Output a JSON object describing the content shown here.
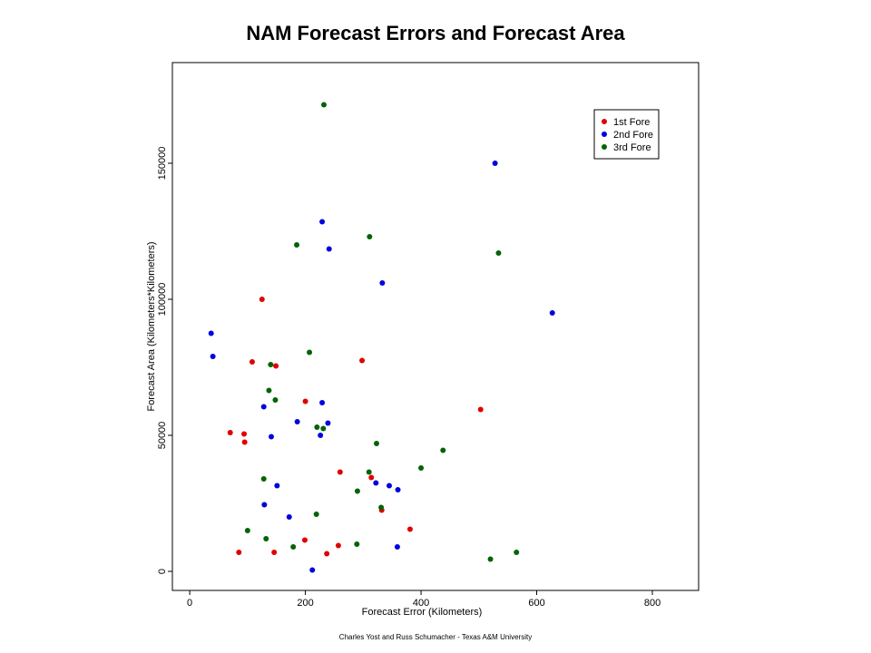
{
  "chart_data": {
    "type": "scatter",
    "title": "NAM Forecast Errors and Forecast Area",
    "xlabel": "Forecast Error (Kilometers)",
    "ylabel": "Forecast Area (Kilometers*Kilometers)",
    "xlim": [
      -30,
      880
    ],
    "ylim": [
      -7000,
      187000
    ],
    "xticks": [
      0,
      200,
      400,
      600,
      800
    ],
    "yticks": [
      0,
      50000,
      100000,
      150000
    ],
    "grid": false,
    "legend_position": "top-right",
    "credit": "Charles Yost and Russ Schumacher - Texas A&M University",
    "series": [
      {
        "name": "1st Fore",
        "color": "#e00000",
        "points": [
          [
            125,
            100000
          ],
          [
            108,
            77000
          ],
          [
            149,
            75500
          ],
          [
            200,
            62500
          ],
          [
            298,
            77500
          ],
          [
            503,
            59500
          ],
          [
            70,
            51000
          ],
          [
            94,
            50500
          ],
          [
            95,
            47500
          ],
          [
            260,
            36500
          ],
          [
            314,
            34500
          ],
          [
            332,
            22500
          ],
          [
            381,
            15500
          ],
          [
            199,
            11500
          ],
          [
            257,
            9500
          ],
          [
            85,
            7000
          ],
          [
            146,
            7000
          ],
          [
            237,
            6500
          ]
        ]
      },
      {
        "name": "2nd Fore",
        "color": "#0000e0",
        "points": [
          [
            528,
            150000
          ],
          [
            229,
            128500
          ],
          [
            241,
            118500
          ],
          [
            333,
            106000
          ],
          [
            627,
            95000
          ],
          [
            37,
            87500
          ],
          [
            40,
            79000
          ],
          [
            128,
            60500
          ],
          [
            229,
            62000
          ],
          [
            186,
            55000
          ],
          [
            239,
            54500
          ],
          [
            141,
            49500
          ],
          [
            226,
            50000
          ],
          [
            151,
            31500
          ],
          [
            322,
            32500
          ],
          [
            345,
            31500
          ],
          [
            360,
            30000
          ],
          [
            129,
            24500
          ],
          [
            172,
            20000
          ],
          [
            359,
            9000
          ],
          [
            212,
            500
          ]
        ]
      },
      {
        "name": "3rd Fore",
        "color": "#006400",
        "points": [
          [
            232,
            171500
          ],
          [
            311,
            123000
          ],
          [
            185,
            120000
          ],
          [
            534,
            117000
          ],
          [
            207,
            80500
          ],
          [
            140,
            76000
          ],
          [
            137,
            66500
          ],
          [
            148,
            63000
          ],
          [
            220,
            53000
          ],
          [
            231,
            52500
          ],
          [
            323,
            47000
          ],
          [
            438,
            44500
          ],
          [
            400,
            38000
          ],
          [
            310,
            36500
          ],
          [
            128,
            34000
          ],
          [
            290,
            29500
          ],
          [
            331,
            23500
          ],
          [
            219,
            21000
          ],
          [
            100,
            15000
          ],
          [
            132,
            12000
          ],
          [
            179,
            9000
          ],
          [
            289,
            10000
          ],
          [
            565,
            7000
          ],
          [
            520,
            4500
          ]
        ]
      }
    ]
  }
}
